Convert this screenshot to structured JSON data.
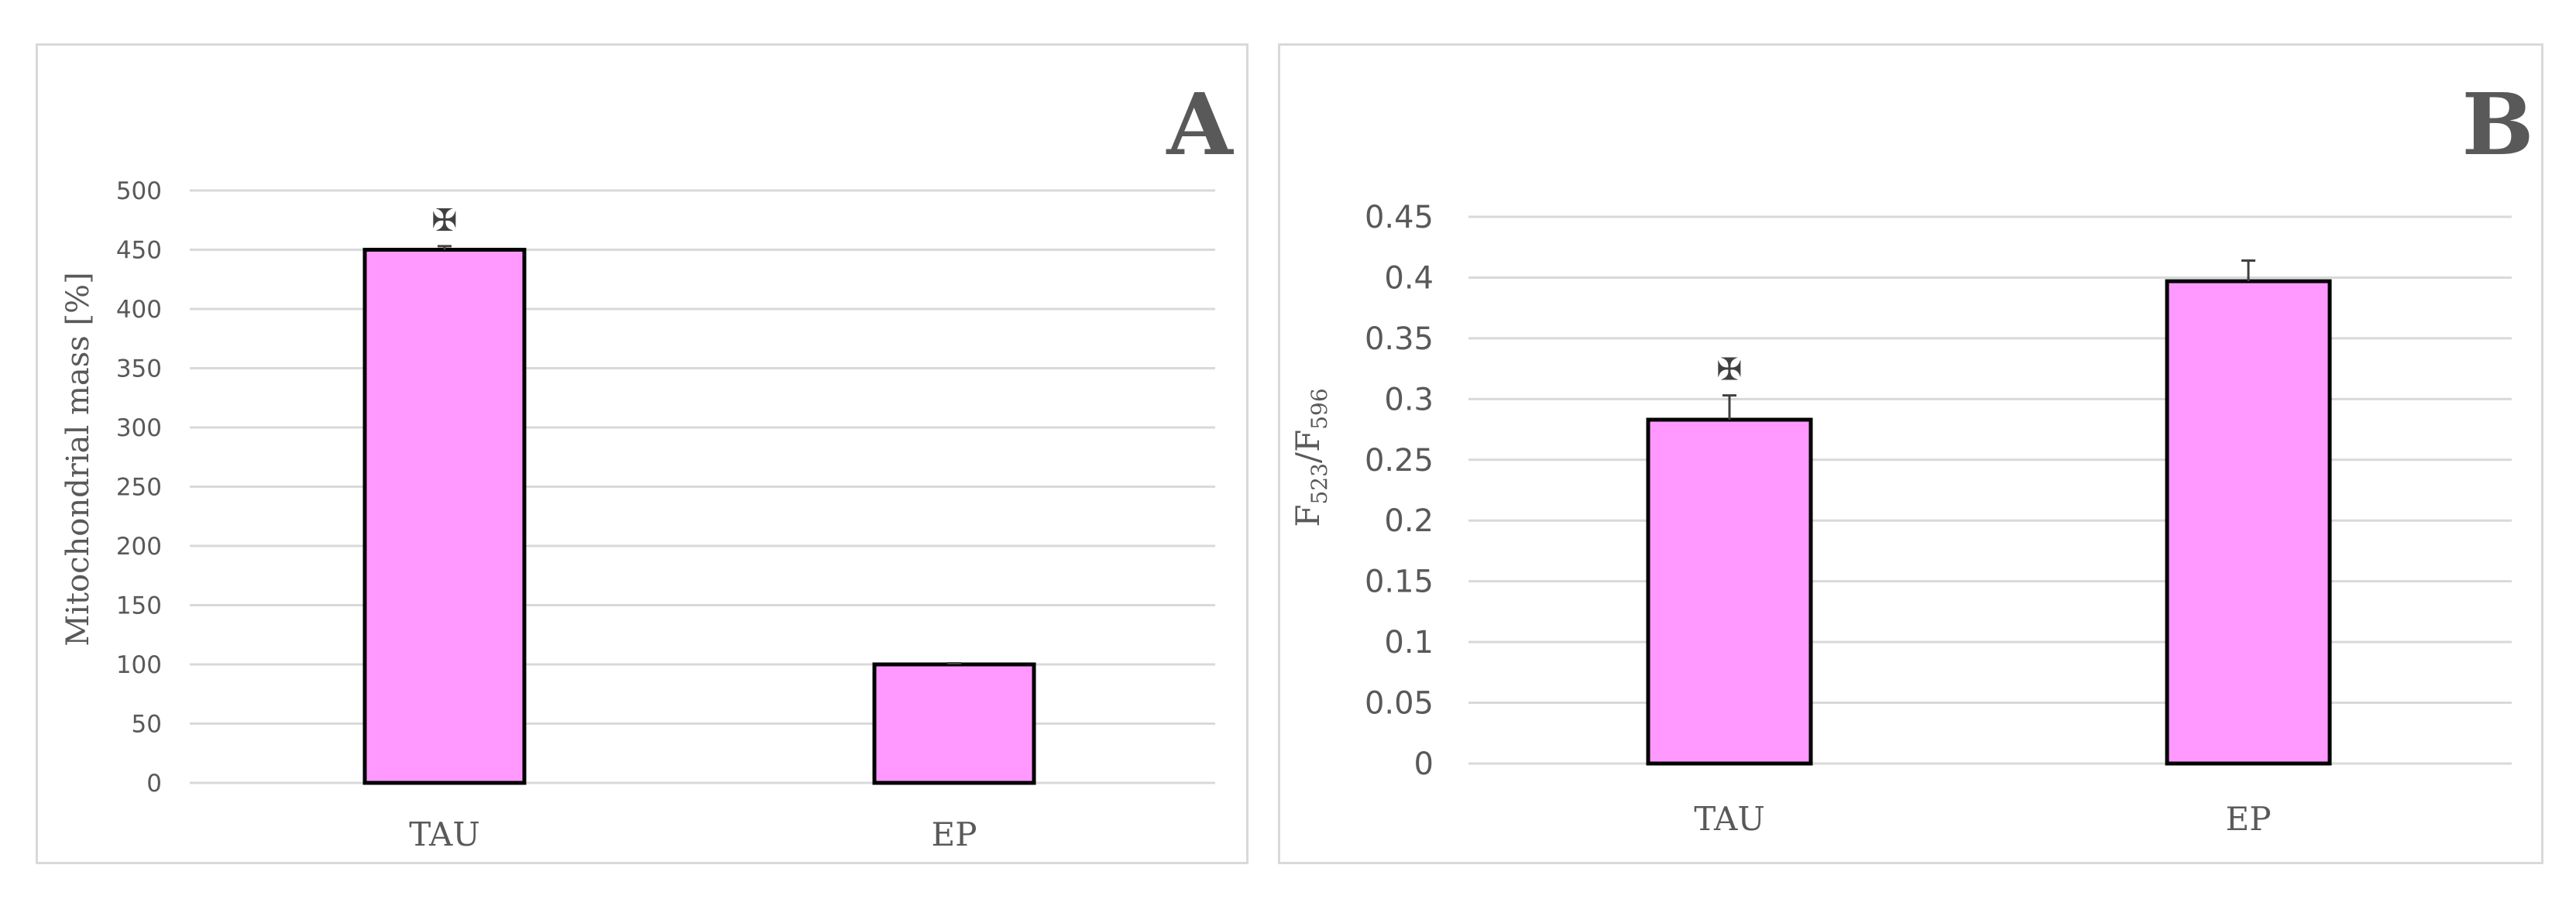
{
  "chart_data": [
    {
      "type": "bar",
      "panel_label": "A",
      "categories": [
        "TAU",
        "EP"
      ],
      "values": [
        450,
        100
      ],
      "error_bars": [
        3,
        1
      ],
      "significance_markers": [
        "✠",
        ""
      ],
      "ylabel": "Mitochondrial mass [%]",
      "xlabel": "",
      "ylim": [
        0,
        500
      ],
      "yticks": [
        0,
        50,
        100,
        150,
        200,
        250,
        300,
        350,
        400,
        450,
        500
      ],
      "ytick_labels": [
        "0",
        "50",
        "100",
        "150",
        "200",
        "250",
        "300",
        "350",
        "400",
        "450",
        "500"
      ],
      "grid": true,
      "bar_color": "#ff99ff",
      "bar_edge_color": "#000000"
    },
    {
      "type": "bar",
      "panel_label": "B",
      "categories": [
        "TAU",
        "EP"
      ],
      "values": [
        0.283,
        0.397
      ],
      "error_bars": [
        0.02,
        0.017
      ],
      "significance_markers": [
        "✠",
        ""
      ],
      "ylabel_parts": {
        "f1": "F",
        "sub1": "523",
        "slash": "/F",
        "sub2": "596"
      },
      "xlabel": "",
      "ylim": [
        0,
        0.45
      ],
      "yticks": [
        0,
        0.05,
        0.1,
        0.15,
        0.2,
        0.25,
        0.3,
        0.35,
        0.4,
        0.45
      ],
      "ytick_labels": [
        "0",
        "0.05",
        "0.1",
        "0.15",
        "0.2",
        "0.25",
        "0.3",
        "0.35",
        "0.4",
        "0.45"
      ],
      "grid": true,
      "bar_color": "#ff99ff",
      "bar_edge_color": "#000000"
    }
  ]
}
